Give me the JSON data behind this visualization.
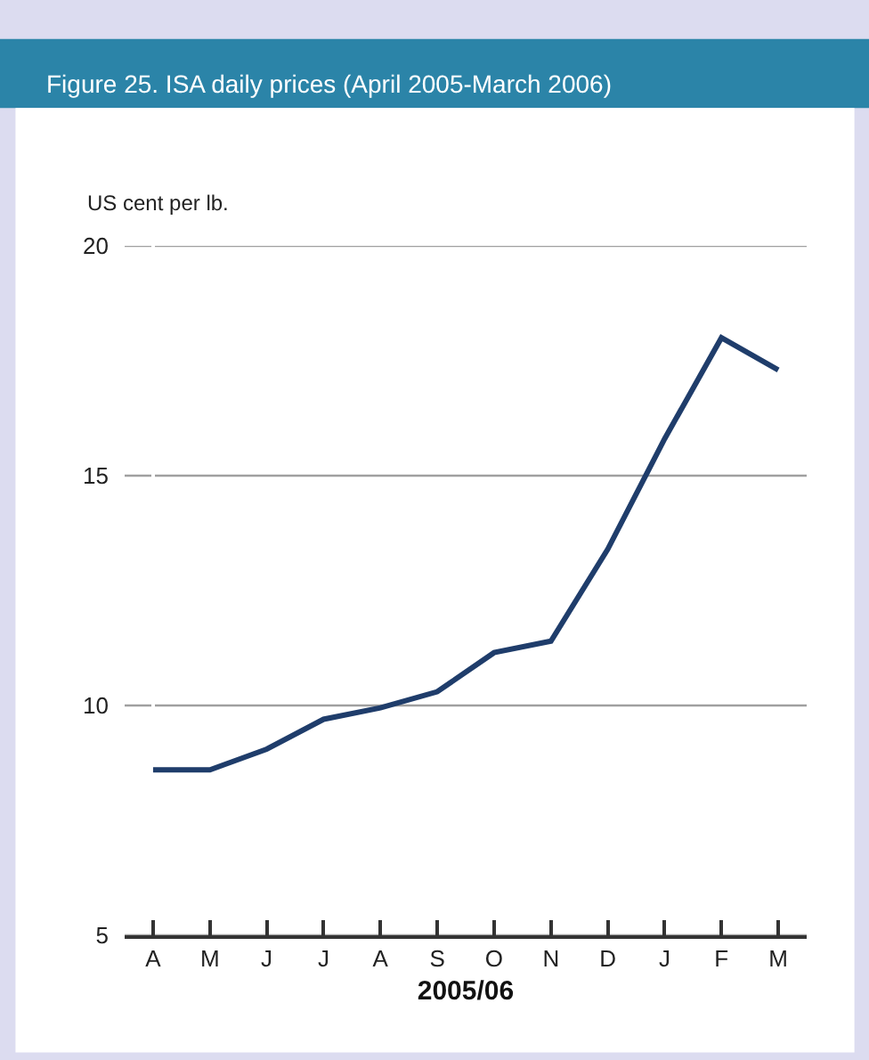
{
  "chart_data": {
    "type": "line",
    "title": "Figure 25. ISA daily prices (April 2005-March 2006)",
    "ylabel": "US cent per lb.",
    "xlabel": "2005/06",
    "categories": [
      "A",
      "M",
      "J",
      "J",
      "A",
      "S",
      "O",
      "N",
      "D",
      "J",
      "F",
      "M"
    ],
    "series": [
      {
        "color": "#1f3d6b",
        "values": [
          8.6,
          8.6,
          9.05,
          9.7,
          9.95,
          10.3,
          11.15,
          11.4,
          13.4,
          15.8,
          18.0,
          17.3
        ]
      }
    ],
    "ylim": [
      5,
      20
    ],
    "yticks": [
      5,
      10,
      15,
      20
    ],
    "grid": "y",
    "marker": "none",
    "line_style": "solid"
  }
}
